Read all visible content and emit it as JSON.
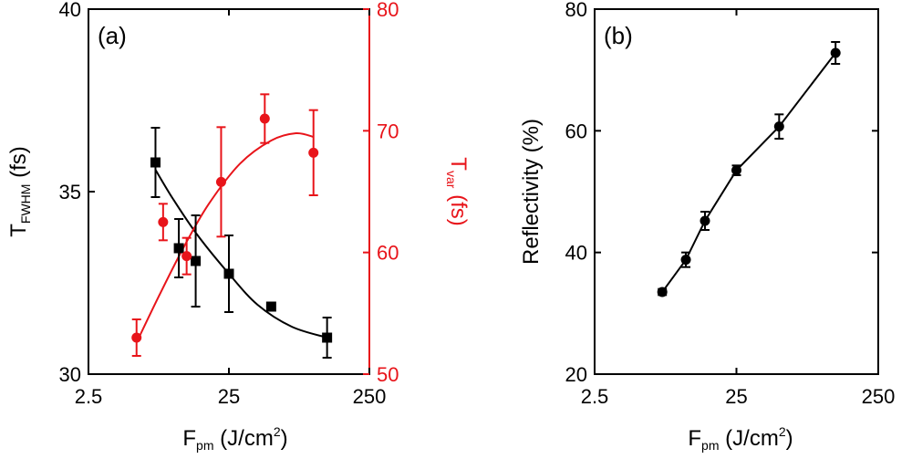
{
  "chart_data": [
    {
      "type": "scatter",
      "panel_label": "(a)",
      "xscale": "log",
      "xlim": [
        2.5,
        250
      ],
      "xticks": [
        2.5,
        25,
        250
      ],
      "xtick_labels": [
        "2.5",
        "25",
        "250"
      ],
      "xlabel": {
        "main": "F",
        "sub": "pm",
        "rest": " (J/cm",
        "sup": "2",
        "end": ")"
      },
      "left_axis": {
        "ylim": [
          30,
          40
        ],
        "yticks": [
          30,
          35,
          40
        ],
        "ytick_labels": [
          "30",
          "35",
          "40"
        ],
        "label": {
          "main": "T",
          "sub": "FWHM",
          "rest": " (fs)"
        },
        "color": "#000000"
      },
      "right_axis": {
        "ylim": [
          50,
          80
        ],
        "yticks": [
          50,
          60,
          70,
          80
        ],
        "ytick_labels": [
          "50",
          "60",
          "70",
          "80"
        ],
        "label": {
          "main": "T",
          "sub": "var",
          "rest": " (fs)"
        },
        "color": "#e8141a"
      },
      "series": [
        {
          "axis": "left",
          "marker": "square",
          "color": "#000000",
          "x": [
            7.5,
            11,
            14.5,
            25,
            50,
            125
          ],
          "y": [
            35.8,
            33.45,
            33.1,
            32.75,
            31.85,
            31.0
          ],
          "err": [
            0.95,
            0.8,
            1.25,
            1.05,
            0,
            0.55
          ],
          "fit": [
            [
              7.5,
              35.6
            ],
            [
              10,
              34.8
            ],
            [
              15,
              33.8
            ],
            [
              25,
              32.75
            ],
            [
              40,
              31.9
            ],
            [
              70,
              31.3
            ],
            [
              125,
              31.0
            ]
          ]
        },
        {
          "axis": "right",
          "marker": "circle",
          "color": "#e8141a",
          "x": [
            5.5,
            8.5,
            12.5,
            22,
            45,
            100
          ],
          "y": [
            53,
            62.5,
            59.7,
            65.8,
            71,
            68.2
          ],
          "err": [
            1.5,
            1.5,
            1.5,
            4.5,
            2,
            3.5
          ],
          "fit": [
            [
              5.5,
              52.6
            ],
            [
              8,
              56.5
            ],
            [
              12,
              60.5
            ],
            [
              18,
              64.0
            ],
            [
              30,
              67.3
            ],
            [
              50,
              69.2
            ],
            [
              75,
              69.8
            ],
            [
              100,
              69.5
            ]
          ]
        }
      ]
    },
    {
      "type": "line",
      "panel_label": "(b)",
      "xscale": "log",
      "xlim": [
        2.5,
        250
      ],
      "xticks": [
        2.5,
        25,
        250
      ],
      "xtick_labels": [
        "2.5",
        "25",
        "250"
      ],
      "xlabel": {
        "main": "F",
        "sub": "pm",
        "rest": " (J/cm",
        "sup": "2",
        "end": ")"
      },
      "ylim": [
        20,
        80
      ],
      "yticks": [
        20,
        40,
        60,
        80
      ],
      "ytick_labels": [
        "20",
        "40",
        "60",
        "80"
      ],
      "ylabel": "Reflectivity (%)",
      "series": [
        {
          "marker": "circle",
          "color": "#000000",
          "x": [
            7.5,
            11,
            15,
            25,
            50,
            125
          ],
          "y": [
            33.5,
            38.8,
            45.2,
            53.5,
            60.7,
            72.8
          ],
          "err": [
            0.5,
            1.2,
            1.5,
            0.8,
            2.0,
            1.8
          ]
        }
      ]
    }
  ]
}
